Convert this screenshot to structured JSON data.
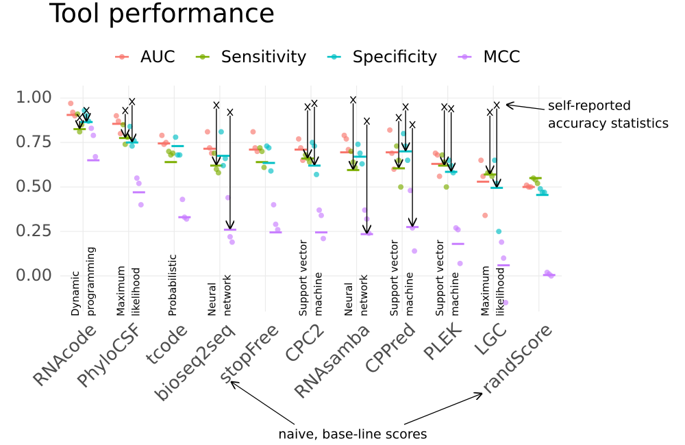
{
  "chart_data": {
    "type": "dot",
    "title": "Tool performance",
    "categories": [
      "RNAcode",
      "PhyloCSF",
      "tcode",
      "bioseq2seq",
      "stopFree",
      "CPC2",
      "RNAsamba",
      "CPPred",
      "PLEK",
      "LGC",
      "randScore"
    ],
    "method_labels": [
      [
        "Dynamic",
        "programming"
      ],
      [
        "Maximum",
        "likelihood"
      ],
      [
        "Probabilistic"
      ],
      [
        "Neural",
        "network"
      ],
      null,
      [
        "Support vector",
        "machine"
      ],
      [
        "Neural",
        "network"
      ],
      [
        "Support vector",
        "machine"
      ],
      [
        "Support vector",
        "machine"
      ],
      [
        "Maximum",
        "likelihood"
      ],
      null
    ],
    "series": [
      {
        "name": "AUC",
        "color": "#F8766D",
        "values": [
          0.905,
          0.855,
          0.745,
          0.715,
          0.71,
          0.71,
          0.695,
          0.695,
          0.63,
          0.53,
          0.5
        ],
        "points": [
          [
            0.97,
            0.92,
            0.9
          ],
          [
            0.9,
            0.87,
            0.8
          ],
          [
            0.79,
            0.74,
            0.75
          ],
          [
            0.81,
            0.72,
            0.69
          ],
          [
            0.81,
            0.72,
            0.7
          ],
          [
            0.77,
            0.72,
            0.65
          ],
          [
            0.79,
            0.77,
            0.71
          ],
          [
            0.82,
            0.69,
            0.6
          ],
          [
            0.69,
            0.68,
            0.56
          ],
          [
            0.65,
            0.56,
            0.34
          ],
          [
            0.51,
            0.5,
            0.5
          ]
        ]
      },
      {
        "name": "Sensitivity",
        "color": "#7CAE00",
        "values": [
          0.825,
          0.775,
          0.64,
          0.62,
          0.64,
          0.66,
          0.595,
          0.605,
          0.62,
          0.57,
          0.55
        ],
        "points": [
          [
            0.91,
            0.81,
            0.85
          ],
          [
            0.85,
            0.74,
            0.78
          ],
          [
            0.7,
            0.68,
            0.69
          ],
          [
            0.69,
            0.6,
            0.58
          ],
          [
            0.72,
            0.7,
            0.61
          ],
          [
            0.68,
            0.66,
            0.64
          ],
          [
            0.7,
            0.64,
            0.61
          ],
          [
            0.73,
            0.65,
            0.5
          ],
          [
            0.68,
            0.64,
            0.5
          ],
          [
            0.58,
            0.58,
            0.56
          ],
          [
            0.55,
            0.54,
            0.52
          ]
        ],
        "self_reported": [
          0.89,
          0.93,
          null,
          0.96,
          null,
          0.95,
          0.99,
          0.89,
          0.95,
          0.92,
          null
        ]
      },
      {
        "name": "Specificity",
        "color": "#00BFC4",
        "values": [
          0.865,
          0.75,
          0.73,
          0.675,
          0.635,
          0.62,
          0.67,
          0.7,
          0.585,
          0.495,
          0.455
        ],
        "points": [
          [
            0.93,
            0.9,
            0.87
          ],
          [
            0.84,
            0.73,
            0.76
          ],
          [
            0.78,
            0.68,
            0.68
          ],
          [
            0.81,
            0.62,
            0.66
          ],
          [
            0.73,
            0.72,
            0.59
          ],
          [
            0.75,
            0.73,
            0.57
          ],
          [
            0.74,
            0.69,
            0.63
          ],
          [
            0.8,
            0.73,
            0.65
          ],
          [
            0.65,
            0.62,
            0.58
          ],
          [
            0.65,
            0.52,
            0.25
          ],
          [
            0.49,
            0.47,
            0.47
          ]
        ],
        "self_reported": [
          0.93,
          0.98,
          null,
          null,
          null,
          0.97,
          null,
          0.95,
          0.94,
          0.96,
          null
        ]
      },
      {
        "name": "MCC",
        "color": "#C77CFF",
        "values": [
          0.65,
          0.47,
          0.33,
          0.26,
          0.245,
          0.245,
          0.235,
          0.275,
          0.18,
          0.06,
          0.005
        ],
        "points": [
          [
            0.83,
            0.79,
            0.67
          ],
          [
            0.55,
            0.52,
            0.4
          ],
          [
            0.43,
            0.33,
            0.32
          ],
          [
            0.44,
            0.22,
            0.19
          ],
          [
            0.4,
            0.29,
            0.26
          ],
          [
            0.37,
            0.34,
            0.21
          ],
          [
            0.37,
            0.32,
            0.24
          ],
          [
            0.48,
            0.27,
            0.14
          ],
          [
            0.27,
            0.26,
            0.07
          ],
          [
            0.19,
            0.1,
            -0.15
          ],
          [
            0.02,
            0.01,
            0.0
          ]
        ],
        "self_reported": [
          null,
          null,
          null,
          0.92,
          null,
          null,
          0.87,
          0.85,
          null,
          null,
          null
        ]
      }
    ],
    "ylim": [
      -0.2,
      1.07
    ],
    "yticks": [
      {
        "value": 0,
        "label": "0.00"
      },
      {
        "value": 0.25,
        "label": "0.25"
      },
      {
        "value": 0.5,
        "label": "0.50"
      },
      {
        "value": 0.75,
        "label": "0.75"
      },
      {
        "value": 1,
        "label": "1.00"
      }
    ],
    "grid": true,
    "legend": "top",
    "annotations": [
      [
        "self-reported",
        "accuracy statistics"
      ],
      [
        "naive, base-line scores"
      ]
    ]
  }
}
